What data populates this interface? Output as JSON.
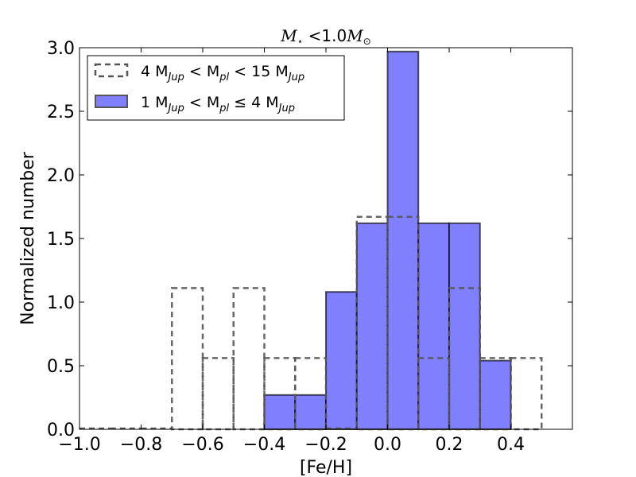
{
  "chart_data": {
    "type": "bar",
    "subtype": "histogram",
    "title": "M⋆ <1.0M⊙",
    "xlabel": "[Fe/H]",
    "ylabel": "Normalized number",
    "xlim": [
      -1.0,
      0.6
    ],
    "ylim": [
      0.0,
      3.0
    ],
    "xticks": [
      -1.0,
      -0.8,
      -0.6,
      -0.4,
      -0.2,
      0.0,
      0.2,
      0.4
    ],
    "xtick_labels": [
      "−1.0",
      "−0.8",
      "−0.6",
      "−0.4",
      "−0.2",
      "0.0",
      "0.2",
      "0.4"
    ],
    "yticks": [
      0.0,
      0.5,
      1.0,
      1.5,
      2.0,
      2.5,
      3.0
    ],
    "ytick_labels": [
      "0.0",
      "0.5",
      "1.0",
      "1.5",
      "2.0",
      "2.5",
      "3.0"
    ],
    "legend_position": "upper-left",
    "grid": false,
    "series": [
      {
        "name": "4 MJup < Mpl < 15 MJup",
        "style": "step-dashed",
        "color": "#555555",
        "bin_edges": [
          -1.0,
          -0.9,
          -0.8,
          -0.7,
          -0.6,
          -0.5,
          -0.4,
          -0.3,
          -0.2,
          -0.1,
          0.0,
          0.1,
          0.2,
          0.3,
          0.4,
          0.5
        ],
        "values": [
          0.0,
          0.0,
          0.0,
          1.11,
          0.56,
          1.11,
          0.56,
          0.56,
          0.0,
          1.67,
          1.67,
          0.56,
          1.11,
          0.56,
          0.56
        ]
      },
      {
        "name": "1 MJup < Mpl ≤ 4 MJup",
        "style": "filled",
        "color": "#8080ff",
        "bin_edges": [
          -1.0,
          -0.9,
          -0.8,
          -0.7,
          -0.6,
          -0.5,
          -0.4,
          -0.3,
          -0.2,
          -0.1,
          0.0,
          0.1,
          0.2,
          0.3,
          0.4
        ],
        "values": [
          0.0,
          0.0,
          0.0,
          0.0,
          0.0,
          0.0,
          0.27,
          0.27,
          1.08,
          1.62,
          2.97,
          1.62,
          1.62,
          0.54
        ]
      }
    ]
  }
}
